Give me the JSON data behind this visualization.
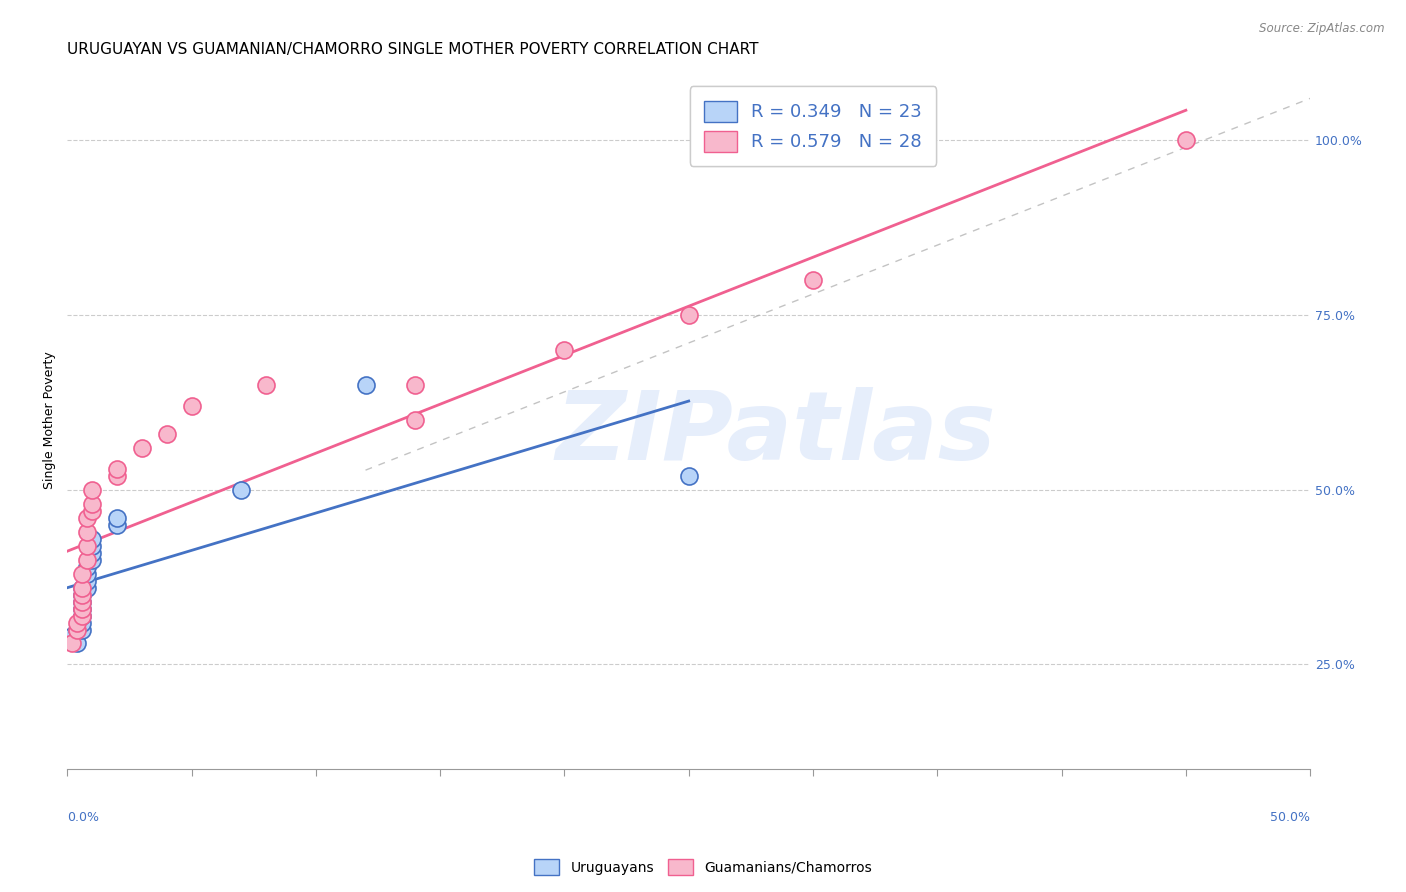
{
  "title": "URUGUAYAN VS GUAMANIAN/CHAMORRO SINGLE MOTHER POVERTY CORRELATION CHART",
  "source": "Source: ZipAtlas.com",
  "ylabel": "Single Mother Poverty",
  "right_yticks": [
    "25.0%",
    "50.0%",
    "75.0%",
    "100.0%"
  ],
  "right_ytick_vals": [
    0.25,
    0.5,
    0.75,
    1.0
  ],
  "xlim": [
    0.0,
    0.5
  ],
  "ylim": [
    0.1,
    1.1
  ],
  "legend1_label": "R = 0.349   N = 23",
  "legend2_label": "R = 0.579   N = 28",
  "legend1_facecolor": "#b8d4f8",
  "legend2_facecolor": "#f8b8cc",
  "line1_color": "#4472c4",
  "line2_color": "#f06090",
  "scatter1_facecolor": "#b8d4f8",
  "scatter2_facecolor": "#f8b8cc",
  "scatter1_edgecolor": "#4472c4",
  "scatter2_edgecolor": "#f06090",
  "watermark": "ZIPatlas",
  "watermark_color": "#c8daf8",
  "gridline_color": "#cccccc",
  "title_fontsize": 11,
  "axis_label_fontsize": 9,
  "tick_fontsize": 9,
  "legend_fontsize": 13,
  "watermark_fontsize": 70,
  "uruguayan_x": [
    0.002,
    0.004,
    0.004,
    0.006,
    0.006,
    0.006,
    0.006,
    0.006,
    0.006,
    0.006,
    0.008,
    0.008,
    0.008,
    0.008,
    0.01,
    0.01,
    0.01,
    0.01,
    0.02,
    0.02,
    0.07,
    0.12,
    0.25
  ],
  "uruguayan_y": [
    0.29,
    0.28,
    0.3,
    0.3,
    0.31,
    0.32,
    0.33,
    0.34,
    0.35,
    0.36,
    0.36,
    0.37,
    0.38,
    0.39,
    0.4,
    0.41,
    0.42,
    0.43,
    0.45,
    0.46,
    0.5,
    0.65,
    0.52
  ],
  "guamanian_x": [
    0.002,
    0.004,
    0.004,
    0.006,
    0.006,
    0.006,
    0.006,
    0.006,
    0.006,
    0.008,
    0.008,
    0.008,
    0.008,
    0.01,
    0.01,
    0.01,
    0.02,
    0.02,
    0.03,
    0.04,
    0.05,
    0.08,
    0.14,
    0.14,
    0.2,
    0.25,
    0.3,
    0.45
  ],
  "guamanian_y": [
    0.28,
    0.3,
    0.31,
    0.32,
    0.33,
    0.34,
    0.35,
    0.36,
    0.38,
    0.4,
    0.42,
    0.44,
    0.46,
    0.47,
    0.48,
    0.5,
    0.52,
    0.53,
    0.56,
    0.58,
    0.62,
    0.65,
    0.6,
    0.65,
    0.7,
    0.75,
    0.8,
    1.0
  ],
  "line1_x_end": 0.25,
  "line2_x_end": 0.45,
  "diag_color": "#aaaaaa"
}
